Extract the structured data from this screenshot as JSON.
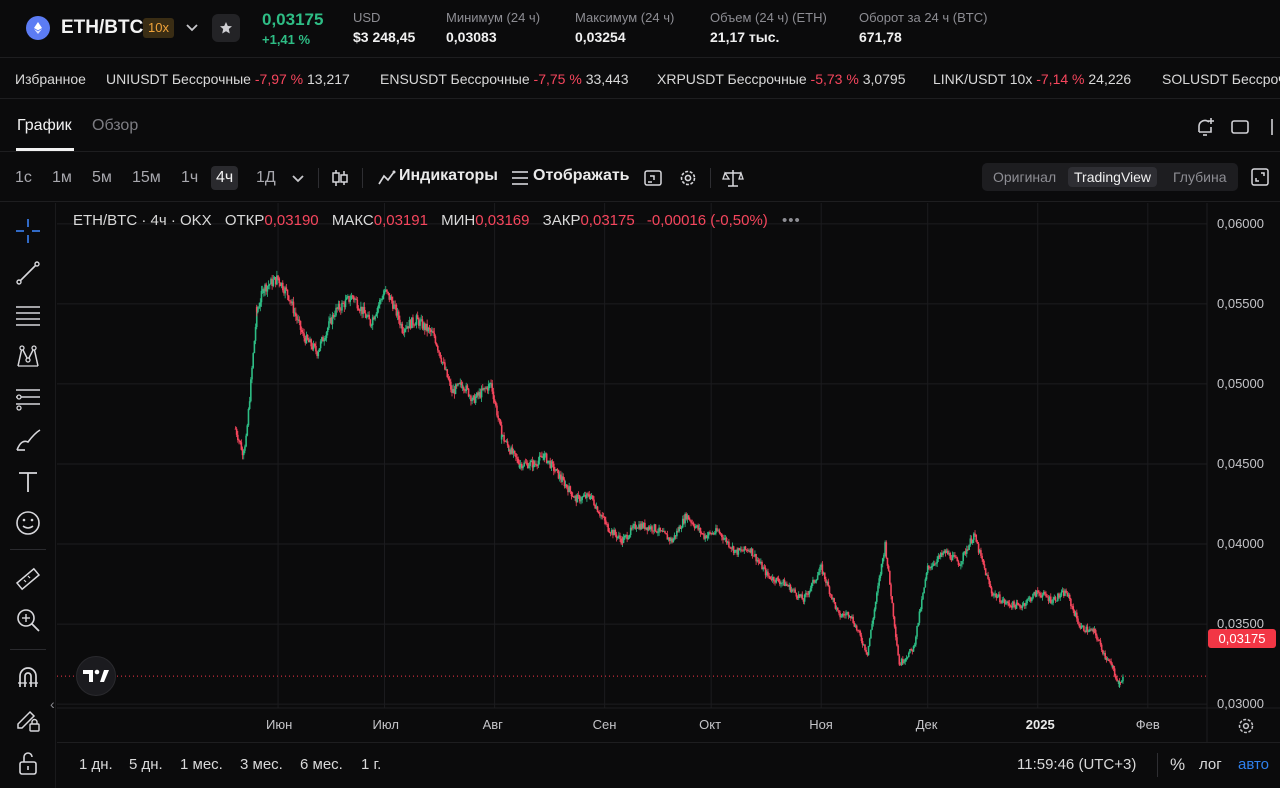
{
  "header": {
    "pair": "ETH/BTC",
    "leverage": "10x",
    "last_price": "0,03175",
    "change_pct": "+1,41 %",
    "stats": [
      {
        "label": "USD",
        "value": "$3 248,45"
      },
      {
        "label": "Минимум (24 ч)",
        "value": "0,03083"
      },
      {
        "label": "Максимум (24 ч)",
        "value": "0,03254"
      },
      {
        "label": "Объем (24 ч) (ETH)",
        "value": "21,17 тыс."
      },
      {
        "label": "Оборот за 24 ч (BTC)",
        "value": "671,78"
      }
    ]
  },
  "ticker": {
    "favorites_label": "Избранное",
    "items": [
      {
        "name": "UNIUSDT Бессрочные",
        "change": "-7,97 %",
        "price": "13,217"
      },
      {
        "name": "ENSUSDT Бессрочные",
        "change": "-7,75 %",
        "price": "33,443"
      },
      {
        "name": "XRPUSDT Бессрочные",
        "change": "-5,73 %",
        "price": "3,0795"
      },
      {
        "name": "LINK/USDT 10x",
        "change": "-7,14 %",
        "price": "24,226"
      },
      {
        "name": "SOLUSDT Бессроч",
        "change": "",
        "price": ""
      }
    ]
  },
  "tabs": {
    "chart": "График",
    "overview": "Обзор"
  },
  "toolbar": {
    "timeframes": [
      "1с",
      "1м",
      "5м",
      "15м",
      "1ч",
      "4ч",
      "1Д"
    ],
    "active_timeframe": "4ч",
    "indicators_label": "Индикаторы",
    "display_label": "Отображать",
    "views": [
      "Оригинал",
      "TradingView",
      "Глубина"
    ],
    "active_view": "TradingView"
  },
  "legend": {
    "symbol": "ETH/BTC · 4ч · OKX",
    "open_label": "ОТКР",
    "open": "0,03190",
    "high_label": "МАКС",
    "high": "0,03191",
    "low_label": "МИН",
    "low": "0,03169",
    "close_label": "ЗАКР",
    "close": "0,03175",
    "change": "-0,00016 (-0,50%)"
  },
  "chart_data": {
    "type": "candlestick",
    "y_ticks": [
      "0,06000",
      "0,05500",
      "0,05000",
      "0,04500",
      "0,04000",
      "0,03500",
      "0,03000"
    ],
    "ylim": [
      0.0282,
      0.0613
    ],
    "x_ticks": [
      "Июн",
      "Июл",
      "Авг",
      "Сен",
      "Окт",
      "Ноя",
      "Дек",
      "2025",
      "Фев"
    ],
    "current_price": "0,03175",
    "colors": {
      "up": "#2ebd85",
      "down": "#f6465d",
      "grid": "#1c1c1f",
      "price_line": "#f23645"
    },
    "series": [
      {
        "name": "ETH/BTC",
        "x": [
          "2024-05-20",
          "2024-05-22",
          "2024-05-23",
          "2024-05-26",
          "2024-05-28",
          "2024-06-01",
          "2024-06-04",
          "2024-06-08",
          "2024-06-12",
          "2024-06-17",
          "2024-06-22",
          "2024-06-27",
          "2024-07-01",
          "2024-07-03",
          "2024-07-06",
          "2024-07-10",
          "2024-07-15",
          "2024-07-20",
          "2024-07-23",
          "2024-07-26",
          "2024-07-31",
          "2024-08-03",
          "2024-08-05",
          "2024-08-08",
          "2024-08-12",
          "2024-08-15",
          "2024-08-20",
          "2024-08-24",
          "2024-08-28",
          "2024-09-02",
          "2024-09-06",
          "2024-09-10",
          "2024-09-15",
          "2024-09-20",
          "2024-09-24",
          "2024-09-29",
          "2024-10-03",
          "2024-10-08",
          "2024-10-12",
          "2024-10-17",
          "2024-10-22",
          "2024-10-27",
          "2024-11-01",
          "2024-11-06",
          "2024-11-09",
          "2024-11-14",
          "2024-11-19",
          "2024-11-23",
          "2024-11-27",
          "2024-12-01",
          "2024-12-06",
          "2024-12-10",
          "2024-12-14",
          "2024-12-19",
          "2024-12-23",
          "2024-12-27",
          "2025-01-01",
          "2025-01-05",
          "2025-01-09",
          "2025-01-13",
          "2025-01-17",
          "2025-01-20",
          "2025-01-22",
          "2025-01-24",
          "2025-01-25"
        ],
        "y": [
          0.0472,
          0.0458,
          0.0465,
          0.0545,
          0.056,
          0.0566,
          0.0555,
          0.053,
          0.052,
          0.0545,
          0.0555,
          0.0538,
          0.0558,
          0.0552,
          0.0535,
          0.054,
          0.053,
          0.0495,
          0.05,
          0.049,
          0.05,
          0.0468,
          0.046,
          0.045,
          0.045,
          0.0455,
          0.044,
          0.0428,
          0.043,
          0.041,
          0.0402,
          0.0412,
          0.041,
          0.0402,
          0.0418,
          0.0405,
          0.0408,
          0.0395,
          0.0397,
          0.038,
          0.0375,
          0.0365,
          0.0385,
          0.0355,
          0.0357,
          0.0332,
          0.04,
          0.0325,
          0.0335,
          0.0385,
          0.0395,
          0.0388,
          0.0406,
          0.037,
          0.0363,
          0.0361,
          0.037,
          0.0365,
          0.037,
          0.0348,
          0.0345,
          0.033,
          0.0323,
          0.0312,
          0.0317
        ]
      }
    ]
  },
  "axis": {
    "gear": "gear-icon"
  },
  "bottom": {
    "ranges": [
      "1 дн.",
      "5 дн.",
      "1 мес.",
      "3 мес.",
      "6 мес.",
      "1 г."
    ],
    "clock": "11:59:46 (UTC+3)",
    "pct": "%",
    "log": "лог",
    "auto": "авто"
  }
}
